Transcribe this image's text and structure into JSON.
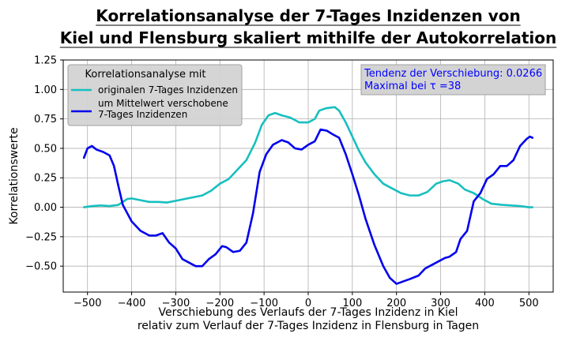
{
  "chart_data": {
    "type": "line",
    "title_lines": [
      "Korrelationsanalyse der 7-Tages Inzidenzen von",
      "Kiel und Flensburg skaliert mithilfe der Autokorrelation"
    ],
    "xlabel_lines": [
      "Verschiebung des Verlaufs der 7-Tages Inzidenz in Kiel",
      "relativ zum Verlauf der 7-Tages Inzidenz in Flensburg in Tagen"
    ],
    "ylabel": "Korrelationswerte",
    "xlim": [
      -555,
      555
    ],
    "ylim": [
      -0.72,
      1.25
    ],
    "xticks": [
      -500,
      -400,
      -300,
      -200,
      -100,
      0,
      100,
      200,
      300,
      400,
      500
    ],
    "xtick_labels": [
      "−500",
      "−400",
      "−300",
      "−200",
      "−100",
      "0",
      "100",
      "200",
      "300",
      "400",
      "500"
    ],
    "yticks": [
      -0.5,
      -0.25,
      0.0,
      0.25,
      0.5,
      0.75,
      1.0,
      1.25
    ],
    "ytick_labels": [
      "−0.50",
      "−0.25",
      "0.00",
      "0.25",
      "0.50",
      "0.75",
      "1.00",
      "1.25"
    ],
    "grid": true,
    "legend": {
      "title": "Korrelationsanalyse mit",
      "placement": "top-left",
      "entries": [
        [
          "originalen 7-Tages Inzidenzen"
        ],
        [
          "um Mittelwert verschobene",
          "7-Tages Inzidenzen"
        ]
      ]
    },
    "annotation": {
      "placement": "top-right",
      "lines": [
        "Tendenz der Verschiebung: 0.0266",
        "Maximal bei τ =38"
      ]
    },
    "series": [
      {
        "name": "originalen 7-Tages Inzidenzen",
        "color": "#17bfbf",
        "points": [
          [
            -508,
            0.0
          ],
          [
            -490,
            0.01
          ],
          [
            -470,
            0.015
          ],
          [
            -450,
            0.01
          ],
          [
            -430,
            0.02
          ],
          [
            -410,
            0.07
          ],
          [
            -400,
            0.075
          ],
          [
            -380,
            0.06
          ],
          [
            -360,
            0.045
          ],
          [
            -340,
            0.045
          ],
          [
            -320,
            0.04
          ],
          [
            -300,
            0.055
          ],
          [
            -280,
            0.07
          ],
          [
            -260,
            0.085
          ],
          [
            -240,
            0.1
          ],
          [
            -220,
            0.14
          ],
          [
            -200,
            0.2
          ],
          [
            -180,
            0.24
          ],
          [
            -160,
            0.32
          ],
          [
            -140,
            0.4
          ],
          [
            -120,
            0.55
          ],
          [
            -105,
            0.7
          ],
          [
            -90,
            0.78
          ],
          [
            -75,
            0.8
          ],
          [
            -60,
            0.78
          ],
          [
            -40,
            0.76
          ],
          [
            -20,
            0.72
          ],
          [
            0,
            0.72
          ],
          [
            15,
            0.75
          ],
          [
            25,
            0.82
          ],
          [
            40,
            0.84
          ],
          [
            60,
            0.85
          ],
          [
            70,
            0.82
          ],
          [
            85,
            0.72
          ],
          [
            100,
            0.6
          ],
          [
            115,
            0.48
          ],
          [
            130,
            0.38
          ],
          [
            150,
            0.28
          ],
          [
            170,
            0.2
          ],
          [
            190,
            0.16
          ],
          [
            210,
            0.12
          ],
          [
            230,
            0.1
          ],
          [
            250,
            0.1
          ],
          [
            270,
            0.13
          ],
          [
            290,
            0.2
          ],
          [
            305,
            0.22
          ],
          [
            320,
            0.23
          ],
          [
            340,
            0.2
          ],
          [
            355,
            0.15
          ],
          [
            375,
            0.12
          ],
          [
            395,
            0.07
          ],
          [
            415,
            0.03
          ],
          [
            440,
            0.02
          ],
          [
            460,
            0.015
          ],
          [
            480,
            0.01
          ],
          [
            500,
            0.0
          ],
          [
            508,
            0.0
          ]
        ]
      },
      {
        "name": "um Mittelwert verschobene 7-Tages Inzidenzen",
        "color": "#0000ee",
        "points": [
          [
            -508,
            0.42
          ],
          [
            -500,
            0.5
          ],
          [
            -490,
            0.52
          ],
          [
            -480,
            0.49
          ],
          [
            -465,
            0.47
          ],
          [
            -450,
            0.44
          ],
          [
            -440,
            0.35
          ],
          [
            -430,
            0.18
          ],
          [
            -420,
            0.02
          ],
          [
            -400,
            -0.12
          ],
          [
            -380,
            -0.2
          ],
          [
            -360,
            -0.24
          ],
          [
            -345,
            -0.24
          ],
          [
            -330,
            -0.22
          ],
          [
            -315,
            -0.3
          ],
          [
            -300,
            -0.35
          ],
          [
            -285,
            -0.44
          ],
          [
            -270,
            -0.47
          ],
          [
            -255,
            -0.5
          ],
          [
            -240,
            -0.5
          ],
          [
            -225,
            -0.44
          ],
          [
            -210,
            -0.4
          ],
          [
            -195,
            -0.33
          ],
          [
            -185,
            -0.34
          ],
          [
            -170,
            -0.38
          ],
          [
            -155,
            -0.37
          ],
          [
            -140,
            -0.3
          ],
          [
            -125,
            -0.05
          ],
          [
            -110,
            0.3
          ],
          [
            -95,
            0.45
          ],
          [
            -80,
            0.53
          ],
          [
            -60,
            0.57
          ],
          [
            -45,
            0.55
          ],
          [
            -30,
            0.5
          ],
          [
            -15,
            0.49
          ],
          [
            0,
            0.53
          ],
          [
            15,
            0.56
          ],
          [
            28,
            0.66
          ],
          [
            42,
            0.65
          ],
          [
            55,
            0.62
          ],
          [
            70,
            0.59
          ],
          [
            85,
            0.45
          ],
          [
            100,
            0.28
          ],
          [
            115,
            0.1
          ],
          [
            130,
            -0.1
          ],
          [
            150,
            -0.32
          ],
          [
            170,
            -0.5
          ],
          [
            185,
            -0.6
          ],
          [
            200,
            -0.65
          ],
          [
            215,
            -0.63
          ],
          [
            230,
            -0.61
          ],
          [
            250,
            -0.58
          ],
          [
            265,
            -0.52
          ],
          [
            280,
            -0.49
          ],
          [
            295,
            -0.46
          ],
          [
            310,
            -0.43
          ],
          [
            320,
            -0.42
          ],
          [
            335,
            -0.38
          ],
          [
            345,
            -0.27
          ],
          [
            360,
            -0.2
          ],
          [
            375,
            0.05
          ],
          [
            390,
            0.12
          ],
          [
            405,
            0.24
          ],
          [
            420,
            0.28
          ],
          [
            435,
            0.35
          ],
          [
            450,
            0.35
          ],
          [
            465,
            0.4
          ],
          [
            480,
            0.52
          ],
          [
            495,
            0.58
          ],
          [
            502,
            0.6
          ],
          [
            508,
            0.59
          ]
        ]
      }
    ]
  }
}
